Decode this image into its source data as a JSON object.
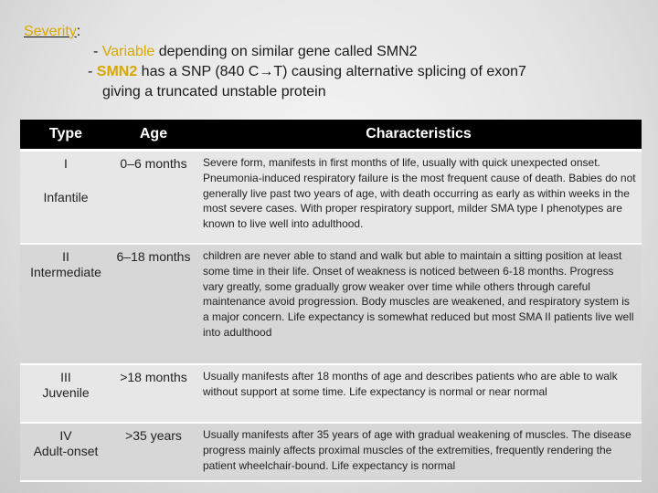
{
  "header": {
    "severity_label": "Severity",
    "severity_colon": ":",
    "line1_prefix": "- ",
    "line1_keyword": "Variable",
    "line1_rest": " depending on similar gene called SMN2",
    "line2_prefix": "- ",
    "line2_keyword": "SMN2",
    "line2_rest": " has a SNP (840 C→T)  causing alternative splicing of exon7",
    "line3": "giving a truncated  unstable protein"
  },
  "table": {
    "columns": [
      "Type",
      "Age",
      "Characteristics"
    ],
    "rows": [
      {
        "type_num": "I",
        "type_name": "Infantile",
        "age": "0–6 months",
        "characteristics": "Severe form, manifests in first months of life, usually with quick unexpected onset. Pneumonia-induced respiratory failure is the most frequent cause of death. Babies do not generally live past two years of age, with death occurring as early as within weeks in the most severe cases. With proper respiratory support, milder SMA type I phenotypes are known to live well into adulthood."
      },
      {
        "type_num": "II",
        "type_name": "Intermediate",
        "age": "6–18 months",
        "characteristics": "children are never able to stand and walk but able to maintain a sitting position at least some time in their life. Onset of weakness is noticed between 6-18 months. Progress vary greatly, some gradually grow weaker over time while others through careful maintenance avoid progression. Body muscles are weakened, and respiratory system is a major concern. Life expectancy is somewhat reduced but most SMA II patients live well into adulthood"
      },
      {
        "type_num": "III",
        "type_name": "Juvenile",
        "age": ">18 months",
        "characteristics": "Usually manifests after 18 months of age and describes patients who are able to walk without support at some time. Life expectancy is normal or near normal"
      },
      {
        "type_num": "IV",
        "type_name": "Adult-onset",
        "age": ">35 years",
        "characteristics": "Usually manifests after 35 years of age with gradual weakening of muscles. The disease progress mainly affects proximal muscles of the extremities, frequently rendering the patient wheelchair-bound.  Life expectancy is normal"
      }
    ]
  },
  "colors": {
    "accent": "#d8a800",
    "header_bg": "#000000",
    "row_light": "#e7e7e7",
    "row_dark": "#d7d7d7"
  }
}
